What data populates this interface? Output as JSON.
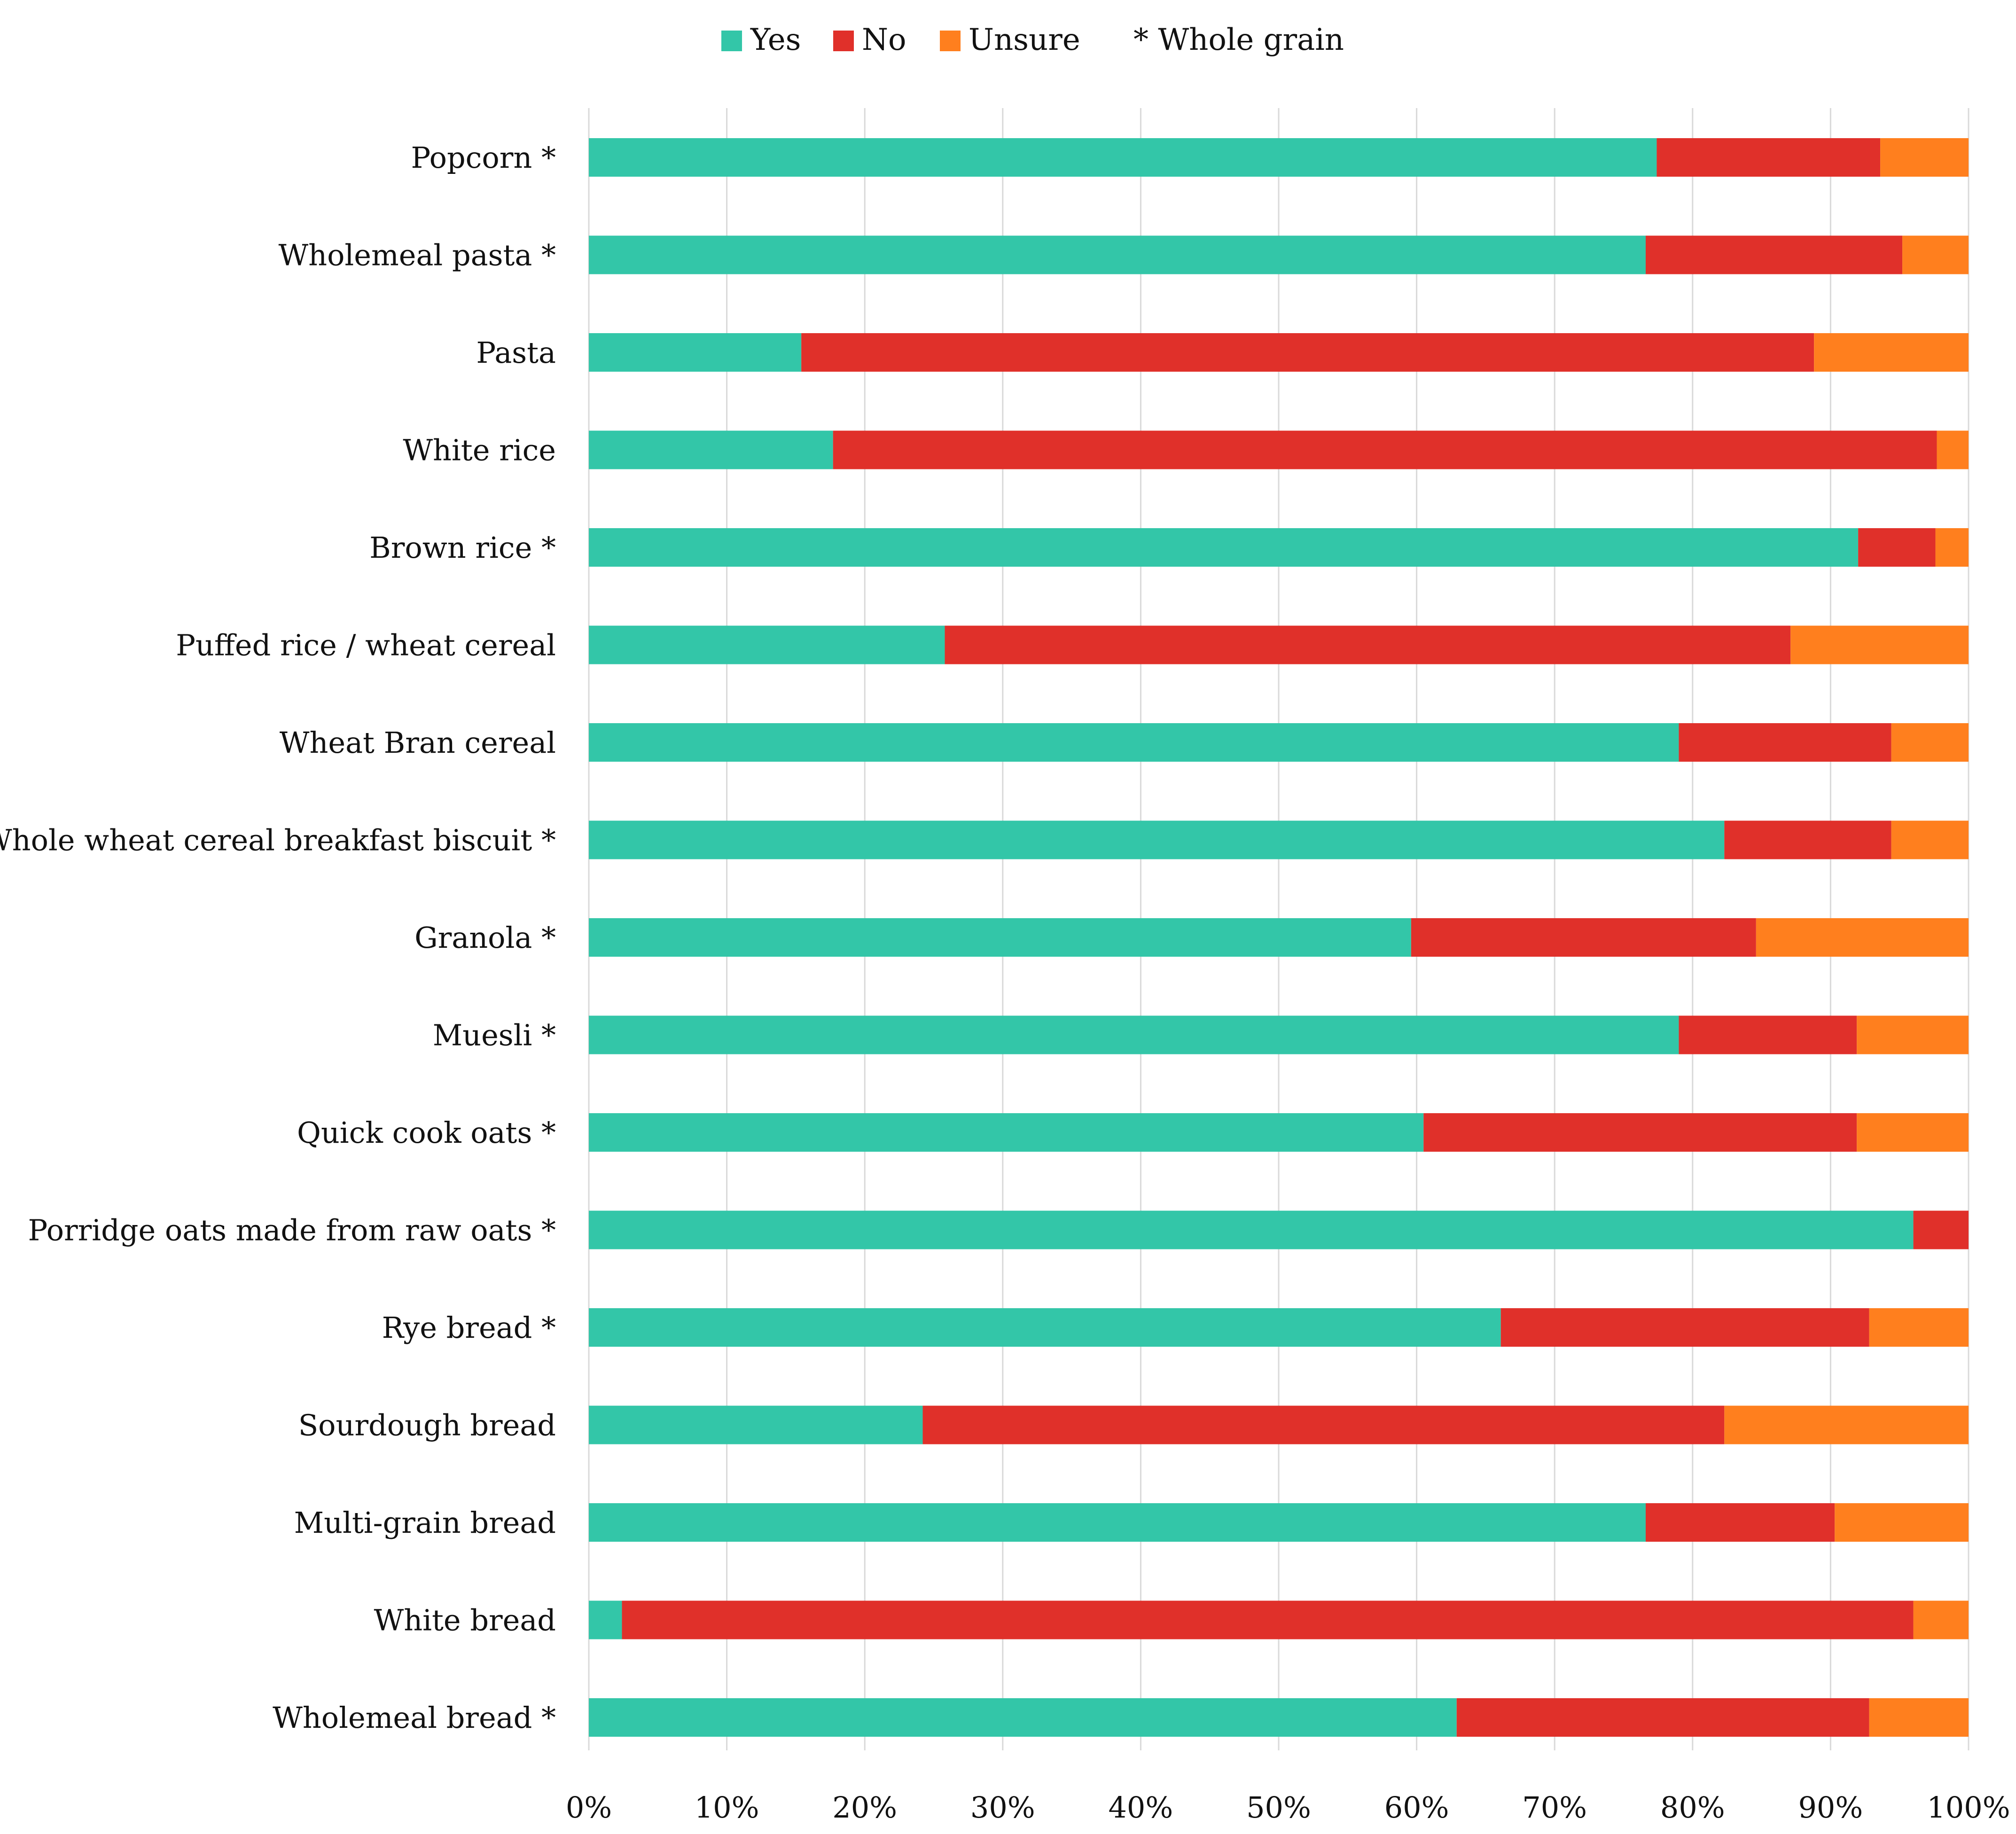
{
  "chart_data": {
    "type": "bar",
    "orientation": "horizontal",
    "stacked": true,
    "title": "",
    "xlabel": "",
    "ylabel": "",
    "xlim": [
      0,
      100
    ],
    "x_ticks": [
      "0%",
      "10%",
      "20%",
      "30%",
      "40%",
      "50%",
      "60%",
      "70%",
      "80%",
      "90%",
      "100%"
    ],
    "grid": true,
    "legend_position": "top-center",
    "legend_note": "* Whole grain",
    "colors": {
      "Yes": "#33c6a8",
      "No": "#e0302a",
      "Unsure": "#ff7f1e"
    },
    "categories": [
      "Popcorn *",
      "Wholemeal pasta *",
      "Pasta",
      "White rice",
      "Brown rice *",
      "Puffed rice / wheat cereal",
      "Wheat Bran cereal",
      "Whole wheat cereal breakfast biscuit *",
      "Granola *",
      "Muesli *",
      "Quick cook oats *",
      "Porridge oats made from raw oats *",
      "Rye bread *",
      "Sourdough bread",
      "Multi-grain bread",
      "White bread",
      "Wholemeal bread *"
    ],
    "series": [
      {
        "name": "Yes",
        "values": [
          77.4,
          76.6,
          15.4,
          17.7,
          92.0,
          25.8,
          79.0,
          82.3,
          59.6,
          79.0,
          60.5,
          96.0,
          66.1,
          24.2,
          76.6,
          2.4,
          62.9
        ]
      },
      {
        "name": "No",
        "values": [
          16.2,
          18.6,
          73.4,
          80.0,
          5.6,
          61.3,
          15.4,
          12.1,
          25.0,
          12.9,
          31.4,
          4.0,
          26.7,
          58.1,
          13.7,
          93.6,
          29.9
        ]
      },
      {
        "name": "Unsure",
        "values": [
          6.4,
          4.8,
          11.2,
          2.3,
          2.4,
          12.9,
          5.6,
          5.6,
          15.4,
          8.1,
          8.1,
          0.0,
          7.2,
          17.7,
          9.7,
          4.0,
          7.2
        ]
      }
    ]
  }
}
